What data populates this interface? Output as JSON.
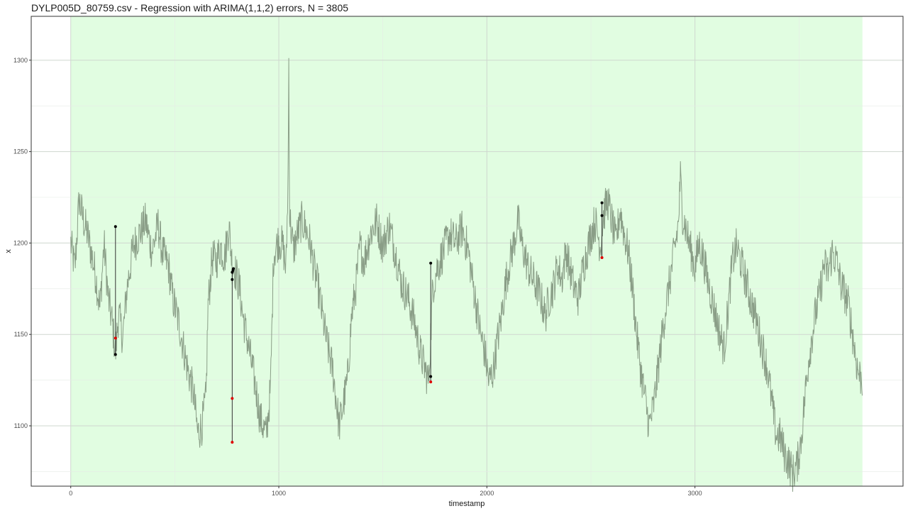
{
  "chart_data": {
    "type": "line",
    "title": "DYLP005D_80759.csv - Regression with ARIMA(1,1,2) errors, N = 3805",
    "xlabel": "timestamp",
    "ylabel": "x",
    "xlim": [
      -190,
      4000
    ],
    "ylim": [
      1067,
      1324
    ],
    "x_ticks": [
      0,
      1000,
      2000,
      3000
    ],
    "y_ticks": [
      1100,
      1150,
      1200,
      1250,
      1300
    ],
    "x_tick_labels": [
      "0",
      "1000",
      "2000",
      "3000"
    ],
    "y_tick_labels": [
      "1100",
      "1150",
      "1200",
      "1250",
      "1300"
    ],
    "grid": true,
    "highlight_region": {
      "x_start": 0,
      "x_end": 3805,
      "color": "#e1fde1"
    },
    "line_color": "#8a9e87",
    "series": [
      {
        "name": "x",
        "anchors": [
          [
            0,
            1200
          ],
          [
            20,
            1186
          ],
          [
            40,
            1224
          ],
          [
            60,
            1213
          ],
          [
            80,
            1205
          ],
          [
            100,
            1194
          ],
          [
            120,
            1182
          ],
          [
            140,
            1164
          ],
          [
            160,
            1200
          ],
          [
            180,
            1170
          ],
          [
            200,
            1156
          ],
          [
            215,
            1139
          ],
          [
            230,
            1162
          ],
          [
            250,
            1148
          ],
          [
            270,
            1175
          ],
          [
            300,
            1198
          ],
          [
            330,
            1205
          ],
          [
            360,
            1212
          ],
          [
            390,
            1195
          ],
          [
            420,
            1210
          ],
          [
            440,
            1195
          ],
          [
            470,
            1187
          ],
          [
            490,
            1170
          ],
          [
            520,
            1156
          ],
          [
            560,
            1132
          ],
          [
            590,
            1118
          ],
          [
            610,
            1096
          ],
          [
            630,
            1100
          ],
          [
            650,
            1115
          ],
          [
            660,
            1166
          ],
          [
            680,
            1192
          ],
          [
            700,
            1190
          ],
          [
            720,
            1198
          ],
          [
            740,
            1192
          ],
          [
            760,
            1210
          ],
          [
            776,
            1188
          ],
          [
            790,
            1185
          ],
          [
            810,
            1176
          ],
          [
            830,
            1158
          ],
          [
            860,
            1140
          ],
          [
            890,
            1120
          ],
          [
            910,
            1104
          ],
          [
            940,
            1095
          ],
          [
            960,
            1120
          ],
          [
            975,
            1194
          ],
          [
            1000,
            1202
          ],
          [
            1020,
            1198
          ],
          [
            1035,
            1185
          ],
          [
            1045,
            1240
          ],
          [
            1048,
            1300
          ],
          [
            1052,
            1215
          ],
          [
            1070,
            1196
          ],
          [
            1090,
            1205
          ],
          [
            1110,
            1212
          ],
          [
            1130,
            1208
          ],
          [
            1150,
            1200
          ],
          [
            1170,
            1186
          ],
          [
            1190,
            1175
          ],
          [
            1210,
            1160
          ],
          [
            1230,
            1146
          ],
          [
            1260,
            1130
          ],
          [
            1290,
            1100
          ],
          [
            1310,
            1112
          ],
          [
            1330,
            1125
          ],
          [
            1350,
            1160
          ],
          [
            1370,
            1176
          ],
          [
            1390,
            1198
          ],
          [
            1410,
            1190
          ],
          [
            1440,
            1205
          ],
          [
            1470,
            1212
          ],
          [
            1500,
            1198
          ],
          [
            1530,
            1210
          ],
          [
            1560,
            1195
          ],
          [
            1590,
            1178
          ],
          [
            1620,
            1170
          ],
          [
            1650,
            1158
          ],
          [
            1680,
            1140
          ],
          [
            1700,
            1132
          ],
          [
            1720,
            1124
          ],
          [
            1740,
            1176
          ],
          [
            1760,
            1186
          ],
          [
            1790,
            1195
          ],
          [
            1820,
            1205
          ],
          [
            1850,
            1200
          ],
          [
            1880,
            1208
          ],
          [
            1910,
            1196
          ],
          [
            1930,
            1180
          ],
          [
            1950,
            1165
          ],
          [
            1970,
            1150
          ],
          [
            1990,
            1140
          ],
          [
            2010,
            1124
          ],
          [
            2030,
            1130
          ],
          [
            2050,
            1146
          ],
          [
            2070,
            1160
          ],
          [
            2090,
            1178
          ],
          [
            2110,
            1190
          ],
          [
            2130,
            1200
          ],
          [
            2150,
            1212
          ],
          [
            2170,
            1198
          ],
          [
            2200,
            1186
          ],
          [
            2230,
            1178
          ],
          [
            2260,
            1170
          ],
          [
            2280,
            1160
          ],
          [
            2300,
            1170
          ],
          [
            2320,
            1176
          ],
          [
            2340,
            1188
          ],
          [
            2360,
            1180
          ],
          [
            2380,
            1196
          ],
          [
            2400,
            1185
          ],
          [
            2420,
            1175
          ],
          [
            2440,
            1170
          ],
          [
            2460,
            1185
          ],
          [
            2480,
            1195
          ],
          [
            2500,
            1205
          ],
          [
            2520,
            1212
          ],
          [
            2545,
            1198
          ],
          [
            2560,
            1215
          ],
          [
            2580,
            1224
          ],
          [
            2600,
            1212
          ],
          [
            2620,
            1200
          ],
          [
            2640,
            1218
          ],
          [
            2660,
            1205
          ],
          [
            2680,
            1195
          ],
          [
            2700,
            1175
          ],
          [
            2720,
            1150
          ],
          [
            2740,
            1130
          ],
          [
            2760,
            1115
          ],
          [
            2780,
            1100
          ],
          [
            2800,
            1110
          ],
          [
            2820,
            1128
          ],
          [
            2840,
            1148
          ],
          [
            2860,
            1165
          ],
          [
            2880,
            1180
          ],
          [
            2900,
            1195
          ],
          [
            2920,
            1210
          ],
          [
            2930,
            1236
          ],
          [
            2940,
            1216
          ],
          [
            2960,
            1206
          ],
          [
            2980,
            1196
          ],
          [
            3000,
            1186
          ],
          [
            3020,
            1200
          ],
          [
            3040,
            1192
          ],
          [
            3060,
            1180
          ],
          [
            3080,
            1170
          ],
          [
            3100,
            1160
          ],
          [
            3120,
            1150
          ],
          [
            3140,
            1142
          ],
          [
            3160,
            1165
          ],
          [
            3180,
            1190
          ],
          [
            3200,
            1198
          ],
          [
            3230,
            1186
          ],
          [
            3260,
            1172
          ],
          [
            3290,
            1160
          ],
          [
            3320,
            1145
          ],
          [
            3350,
            1130
          ],
          [
            3370,
            1112
          ],
          [
            3390,
            1095
          ],
          [
            3410,
            1094
          ],
          [
            3430,
            1085
          ],
          [
            3450,
            1080
          ],
          [
            3470,
            1074
          ],
          [
            3490,
            1078
          ],
          [
            3510,
            1092
          ],
          [
            3530,
            1118
          ],
          [
            3550,
            1140
          ],
          [
            3580,
            1162
          ],
          [
            3600,
            1172
          ],
          [
            3620,
            1188
          ],
          [
            3640,
            1184
          ],
          [
            3660,
            1195
          ],
          [
            3680,
            1190
          ],
          [
            3700,
            1178
          ],
          [
            3720,
            1172
          ],
          [
            3740,
            1165
          ],
          [
            3760,
            1148
          ],
          [
            3780,
            1132
          ],
          [
            3790,
            1128
          ],
          [
            3805,
            1125
          ]
        ]
      }
    ],
    "segments": [
      {
        "x": 215,
        "y1": 1139,
        "y2": 1209
      },
      {
        "x": 776,
        "y1": 1091,
        "y2": 1186
      },
      {
        "x": 1730,
        "y1": 1124,
        "y2": 1189
      },
      {
        "x": 2553,
        "y1": 1192,
        "y2": 1222
      }
    ],
    "points_black": [
      [
        215,
        1209
      ],
      [
        215,
        1139
      ],
      [
        776,
        1180
      ],
      [
        776,
        1184
      ],
      [
        780,
        1185
      ],
      [
        782,
        1186
      ],
      [
        1730,
        1189
      ],
      [
        1730,
        1127
      ],
      [
        2553,
        1222
      ],
      [
        2553,
        1215
      ]
    ],
    "points_red": [
      [
        215,
        1148
      ],
      [
        776,
        1115
      ],
      [
        776,
        1091
      ],
      [
        1730,
        1124
      ],
      [
        2553,
        1192
      ]
    ]
  }
}
